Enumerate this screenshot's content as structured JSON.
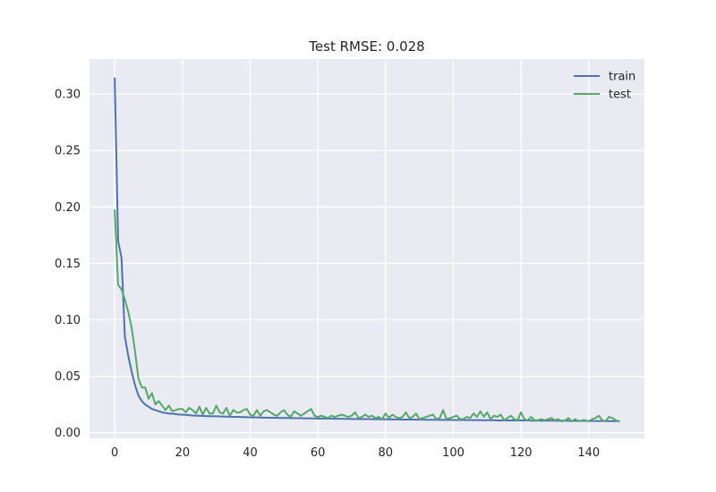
{
  "chart_data": {
    "type": "line",
    "title": "Test RMSE: 0.028",
    "xlabel": "",
    "ylabel": "",
    "xlim": [
      -7.45,
      156.45
    ],
    "ylim": [
      -0.005,
      0.331
    ],
    "xticks": [
      0,
      20,
      40,
      60,
      80,
      100,
      120,
      140
    ],
    "yticks": [
      0.0,
      0.05,
      0.1,
      0.15,
      0.2,
      0.25,
      0.3
    ],
    "ytick_labels": [
      "0.00",
      "0.05",
      "0.10",
      "0.15",
      "0.20",
      "0.25",
      "0.30"
    ],
    "grid": true,
    "legend_position": "top-right",
    "series": [
      {
        "name": "train",
        "color": "#4c72b0",
        "values": [
          0.314,
          0.17,
          0.155,
          0.085,
          0.068,
          0.054,
          0.042,
          0.033,
          0.028,
          0.025,
          0.023,
          0.021,
          0.02,
          0.019,
          0.018,
          0.0175,
          0.017,
          0.0168,
          0.0165,
          0.016,
          0.016,
          0.0158,
          0.0155,
          0.0152,
          0.015,
          0.015,
          0.0148,
          0.0147,
          0.0146,
          0.0145,
          0.0145,
          0.0144,
          0.0143,
          0.0142,
          0.0141,
          0.014,
          0.014,
          0.0139,
          0.0138,
          0.0137,
          0.0136,
          0.0135,
          0.0135,
          0.0134,
          0.0133,
          0.0133,
          0.0132,
          0.0132,
          0.0131,
          0.0131,
          0.013,
          0.013,
          0.0129,
          0.0129,
          0.0128,
          0.0128,
          0.0127,
          0.0127,
          0.0126,
          0.0126,
          0.0125,
          0.0125,
          0.0125,
          0.0124,
          0.0124,
          0.0123,
          0.0123,
          0.0123,
          0.0122,
          0.0122,
          0.0121,
          0.0121,
          0.0121,
          0.012,
          0.012,
          0.012,
          0.0119,
          0.0119,
          0.0119,
          0.0118,
          0.0118,
          0.0118,
          0.0117,
          0.0117,
          0.0117,
          0.0116,
          0.0116,
          0.0116,
          0.0116,
          0.0115,
          0.0115,
          0.0115,
          0.0114,
          0.0114,
          0.0114,
          0.0114,
          0.0113,
          0.0113,
          0.0113,
          0.0113,
          0.0112,
          0.0112,
          0.0112,
          0.0112,
          0.0111,
          0.0111,
          0.0111,
          0.0111,
          0.0111,
          0.011,
          0.011,
          0.011,
          0.011,
          0.0109,
          0.0109,
          0.0109,
          0.0109,
          0.0109,
          0.0108,
          0.0108,
          0.0108,
          0.0108,
          0.0108,
          0.0107,
          0.0107,
          0.0107,
          0.0107,
          0.0107,
          0.0106,
          0.0106,
          0.0106,
          0.0106,
          0.0106,
          0.0106,
          0.0105,
          0.0105,
          0.0105,
          0.0105,
          0.0105,
          0.0105,
          0.0104,
          0.0104,
          0.0104,
          0.0104,
          0.0104,
          0.0104,
          0.0103,
          0.0103,
          0.0103,
          0.0103
        ]
      },
      {
        "name": "test",
        "color": "#55a868",
        "values": [
          0.197,
          0.131,
          0.127,
          0.118,
          0.107,
          0.093,
          0.072,
          0.048,
          0.04,
          0.04,
          0.03,
          0.035,
          0.025,
          0.028,
          0.024,
          0.02,
          0.024,
          0.019,
          0.02,
          0.021,
          0.021,
          0.018,
          0.022,
          0.02,
          0.017,
          0.023,
          0.016,
          0.022,
          0.017,
          0.017,
          0.024,
          0.018,
          0.017,
          0.022,
          0.015,
          0.02,
          0.018,
          0.018,
          0.02,
          0.021,
          0.016,
          0.015,
          0.02,
          0.015,
          0.019,
          0.02,
          0.018,
          0.016,
          0.015,
          0.018,
          0.02,
          0.016,
          0.014,
          0.019,
          0.017,
          0.015,
          0.017,
          0.019,
          0.021,
          0.015,
          0.014,
          0.015,
          0.014,
          0.013,
          0.015,
          0.014,
          0.015,
          0.016,
          0.015,
          0.014,
          0.015,
          0.018,
          0.013,
          0.014,
          0.016,
          0.014,
          0.015,
          0.013,
          0.014,
          0.012,
          0.017,
          0.013,
          0.016,
          0.014,
          0.013,
          0.014,
          0.018,
          0.013,
          0.014,
          0.017,
          0.012,
          0.013,
          0.014,
          0.015,
          0.016,
          0.012,
          0.013,
          0.02,
          0.012,
          0.013,
          0.014,
          0.015,
          0.012,
          0.012,
          0.014,
          0.013,
          0.017,
          0.014,
          0.019,
          0.014,
          0.018,
          0.012,
          0.015,
          0.014,
          0.016,
          0.011,
          0.013,
          0.015,
          0.012,
          0.011,
          0.018,
          0.012,
          0.011,
          0.014,
          0.011,
          0.011,
          0.012,
          0.011,
          0.012,
          0.013,
          0.011,
          0.012,
          0.01,
          0.011,
          0.013,
          0.01,
          0.012,
          0.01,
          0.011,
          0.011,
          0.01,
          0.012,
          0.013,
          0.015,
          0.011,
          0.01,
          0.014,
          0.013,
          0.011,
          0.01
        ]
      }
    ],
    "style": {
      "background": "#eaeaf2",
      "grid_color": "#ffffff",
      "text_color": "#262626"
    }
  }
}
